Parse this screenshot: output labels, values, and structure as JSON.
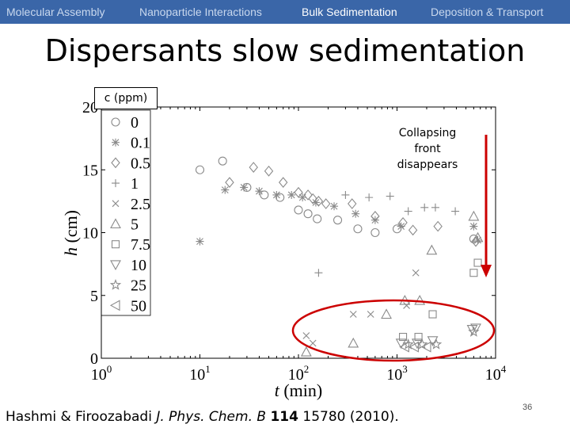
{
  "nav": {
    "items": [
      "Molecular Assembly",
      "Nanoparticle Interactions",
      "Bulk Sedimentation",
      "Deposition & Transport"
    ],
    "active_index": 2
  },
  "slide": {
    "title": "Dispersants slow sedimentation",
    "annotation": "Collapsing\nfront\ndisappears",
    "legend_title": "c (ppm)",
    "citation": {
      "authors": "Hashmi & Firoozabadi ",
      "journal": "J. Phys. Chem. B",
      "volume": "114",
      "rest": " 15780 (2010)."
    },
    "page_number": "36"
  },
  "colors": {
    "navbar": "#3a66a8",
    "nav_text": "#c9d8ee",
    "nav_active": "#ffffff",
    "marker": "#8a8a8a",
    "arrow": "#cc0000",
    "highlight": "#cc0000"
  },
  "chart_data": {
    "type": "scatter",
    "xlabel": "t (min)",
    "ylabel": "h (cm)",
    "xscale": "log",
    "xlim": [
      1,
      10000
    ],
    "ylim": [
      0,
      20
    ],
    "xticks": [
      {
        "value": 1,
        "base": "10",
        "exp": "0"
      },
      {
        "value": 10,
        "base": "10",
        "exp": "1"
      },
      {
        "value": 100,
        "base": "10",
        "exp": "2"
      },
      {
        "value": 1000,
        "base": "10",
        "exp": "3"
      },
      {
        "value": 10000,
        "base": "10",
        "exp": "4"
      }
    ],
    "yticks": [
      0,
      5,
      10,
      15,
      20
    ],
    "legend": {
      "title": "c (ppm)",
      "placement": "left, inside plot"
    },
    "series": [
      {
        "name": "0",
        "marker": "circle",
        "points": [
          [
            10,
            15.0
          ],
          [
            17,
            15.7
          ],
          [
            30,
            13.6
          ],
          [
            45,
            13.0
          ],
          [
            65,
            12.8
          ],
          [
            100,
            11.8
          ],
          [
            125,
            11.5
          ],
          [
            155,
            11.1
          ],
          [
            250,
            11.0
          ],
          [
            400,
            10.3
          ],
          [
            600,
            10.0
          ],
          [
            1000,
            10.3
          ],
          [
            6000,
            9.5
          ]
        ]
      },
      {
        "name": "0.1",
        "marker": "star",
        "points": [
          [
            10,
            9.3
          ],
          [
            18,
            13.4
          ],
          [
            28,
            13.6
          ],
          [
            40,
            13.3
          ],
          [
            60,
            13.0
          ],
          [
            85,
            13.0
          ],
          [
            110,
            12.8
          ],
          [
            150,
            12.4
          ],
          [
            230,
            12.1
          ],
          [
            380,
            11.5
          ],
          [
            600,
            11.0
          ],
          [
            1100,
            10.5
          ],
          [
            6000,
            10.5
          ],
          [
            6600,
            9.4
          ]
        ]
      },
      {
        "name": "0.5",
        "marker": "diamond",
        "points": [
          [
            20,
            14.0
          ],
          [
            35,
            15.2
          ],
          [
            50,
            14.9
          ],
          [
            70,
            14.0
          ],
          [
            100,
            13.2
          ],
          [
            125,
            13.0
          ],
          [
            140,
            12.7
          ],
          [
            160,
            12.5
          ],
          [
            190,
            12.3
          ],
          [
            350,
            12.3
          ],
          [
            600,
            11.3
          ],
          [
            1150,
            10.8
          ],
          [
            1450,
            10.2
          ],
          [
            2600,
            10.5
          ],
          [
            6300,
            9.3
          ]
        ]
      },
      {
        "name": "1",
        "marker": "plus",
        "points": [
          [
            160,
            6.8
          ],
          [
            300,
            13.0
          ],
          [
            520,
            12.8
          ],
          [
            850,
            12.9
          ],
          [
            1300,
            11.7
          ],
          [
            1900,
            12.0
          ],
          [
            2450,
            12.0
          ],
          [
            3900,
            11.7
          ]
        ]
      },
      {
        "name": "2.5",
        "marker": "x",
        "points": [
          [
            120,
            1.8
          ],
          [
            140,
            1.2
          ],
          [
            360,
            3.5
          ],
          [
            540,
            3.5
          ],
          [
            1250,
            4.2
          ],
          [
            1550,
            6.8
          ]
        ]
      },
      {
        "name": "5",
        "marker": "triangle-up",
        "points": [
          [
            120,
            0.5
          ],
          [
            360,
            1.2
          ],
          [
            780,
            3.5
          ],
          [
            1200,
            4.6
          ],
          [
            1700,
            4.6
          ],
          [
            2250,
            8.6
          ],
          [
            6000,
            11.3
          ],
          [
            6600,
            9.6
          ]
        ]
      },
      {
        "name": "7.5",
        "marker": "square",
        "points": [
          [
            1150,
            1.7
          ],
          [
            1650,
            1.7
          ],
          [
            2300,
            3.5
          ],
          [
            6000,
            6.8
          ],
          [
            6600,
            7.6
          ]
        ]
      },
      {
        "name": "10",
        "marker": "triangle-down",
        "points": [
          [
            1100,
            1.2
          ],
          [
            1600,
            1.2
          ],
          [
            2300,
            1.4
          ],
          [
            5800,
            2.3
          ],
          [
            6300,
            2.4
          ]
        ]
      },
      {
        "name": "25",
        "marker": "pentagram",
        "points": [
          [
            1300,
            1.1
          ],
          [
            1800,
            1.1
          ],
          [
            2500,
            1.1
          ],
          [
            6000,
            2.1
          ]
        ]
      },
      {
        "name": "50",
        "marker": "triangle-left",
        "points": [
          [
            1200,
            0.9
          ],
          [
            1500,
            0.9
          ],
          [
            2000,
            0.9
          ]
        ]
      }
    ]
  }
}
